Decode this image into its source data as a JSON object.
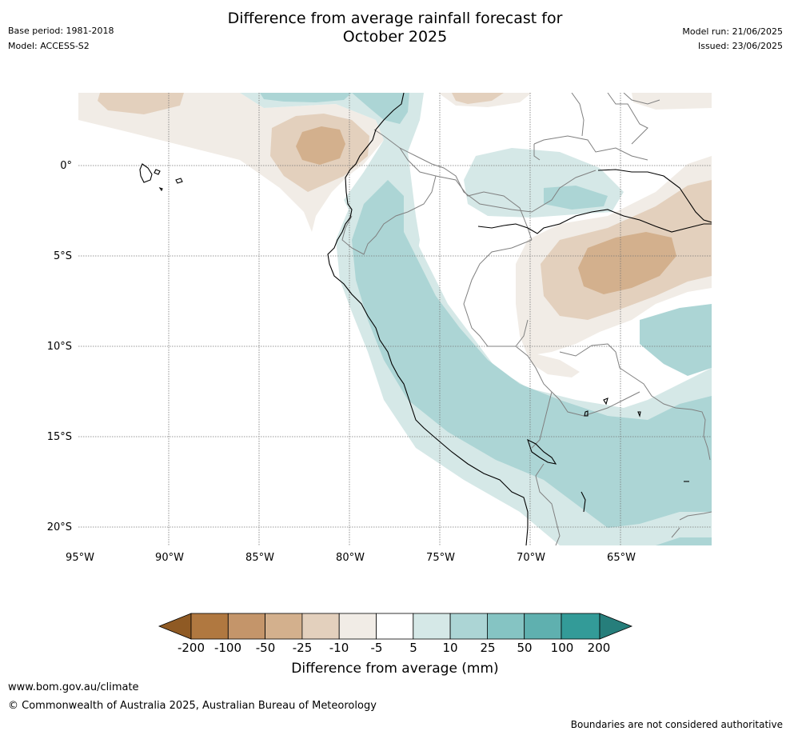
{
  "header": {
    "base_period": "Base period: 1981-2018",
    "model": "Model: ACCESS-S2",
    "title_line1": "Difference from average rainfall forecast for",
    "title_line2": "October 2025",
    "model_run": "Model run: 21/06/2025",
    "issued": "Issued: 23/06/2025"
  },
  "map": {
    "lon_ticks": [
      "95°W",
      "90°W",
      "85°W",
      "80°W",
      "75°W",
      "70°W",
      "65°W"
    ],
    "lat_ticks": [
      "0°",
      "5°S",
      "10°S",
      "15°S",
      "20°S"
    ],
    "colors": {
      "dry_200": "#8f5a24",
      "dry_100": "#b07840",
      "dry_50": "#c4956a",
      "dry_25": "#d3b08d",
      "dry_10": "#e3d0bd",
      "dry_5": "#f1ece6",
      "neutral": "#ffffff",
      "wet_5": "#d5e8e7",
      "wet_10": "#acd5d5",
      "wet_25": "#85c4c3",
      "wet_50": "#5fb0af",
      "wet_100": "#339b98",
      "wet_200": "#267e7b"
    }
  },
  "colorbar": {
    "labels": [
      "-200",
      "-100",
      "-50",
      "-25",
      "-10",
      "-5",
      "5",
      "10",
      "25",
      "50",
      "100",
      "200"
    ],
    "title": "Difference from average (mm)"
  },
  "footer": {
    "url": "www.bom.gov.au/climate",
    "copyright": "© Commonwealth of Australia 2025, Australian Bureau of Meteorology",
    "disclaimer": "Boundaries are not considered authoritative"
  }
}
